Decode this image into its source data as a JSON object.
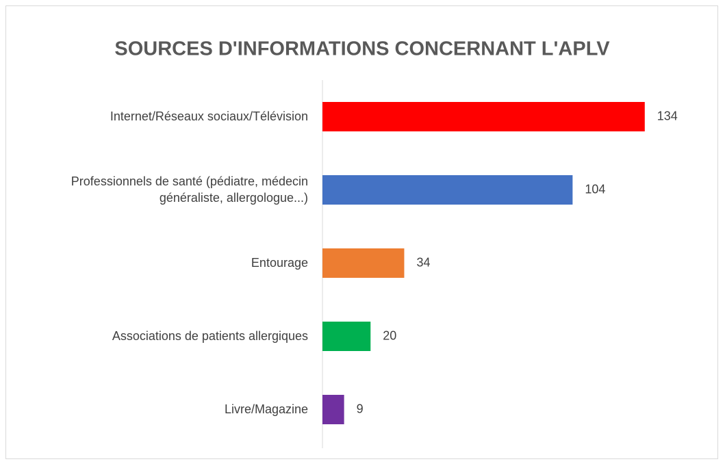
{
  "chart_data": {
    "type": "barh",
    "title": "SOURCES D'INFORMATIONS CONCERNANT L'APLV",
    "categories": [
      "Internet/Réseaux sociaux/Télévision",
      "Professionnels de santé (pédiatre, médecin généraliste, allergologue...)",
      "Entourage",
      "Associations de patients allergiques",
      "Livre/Magazine"
    ],
    "values": [
      134,
      104,
      34,
      20,
      9
    ],
    "colors": [
      "#ff0000",
      "#4472c4",
      "#ed7d31",
      "#00b050",
      "#7030a0"
    ],
    "xlim": [
      0,
      150
    ],
    "grid": false
  }
}
